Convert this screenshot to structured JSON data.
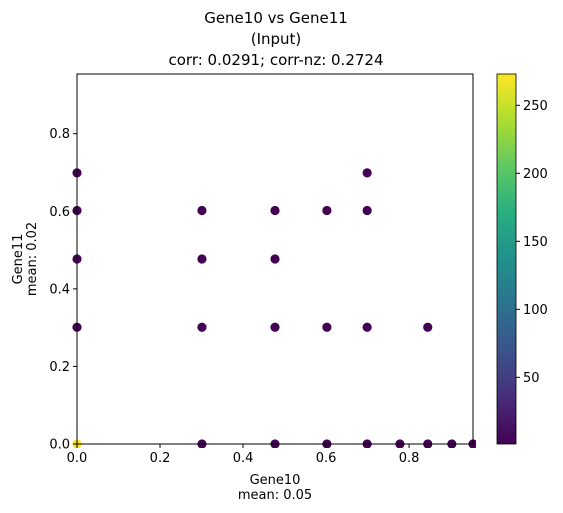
{
  "chart_data": {
    "type": "scatter",
    "title_lines": [
      "Gene10 vs Gene11",
      "(Input)",
      "corr: 0.0291; corr-nz: 0.2724"
    ],
    "xlabel_lines": [
      "Gene10",
      "mean: 0.05"
    ],
    "ylabel_lines": [
      "Gene11",
      "mean: 0.02"
    ],
    "xlim": [
      0,
      0.954
    ],
    "ylim": [
      0,
      0.954
    ],
    "xticks": [
      "0.0",
      "0.2",
      "0.4",
      "0.6",
      "0.8"
    ],
    "yticks": [
      "0.0",
      "0.2",
      "0.4",
      "0.6",
      "0.8"
    ],
    "colorbar": {
      "colormap": "viridis",
      "range": [
        1,
        273
      ],
      "ticks": [
        "50",
        "100",
        "150",
        "200",
        "250"
      ]
    },
    "colors": {
      "low": "#440154",
      "high": "#fde725"
    },
    "points": [
      {
        "x": 0,
        "y": 0,
        "c": 273
      },
      {
        "x": 0,
        "y": 0.301,
        "c": 3
      },
      {
        "x": 0,
        "y": 0.477,
        "c": 2
      },
      {
        "x": 0,
        "y": 0.602,
        "c": 1
      },
      {
        "x": 0,
        "y": 0.699,
        "c": 1
      },
      {
        "x": 0.301,
        "y": 0,
        "c": 3
      },
      {
        "x": 0.301,
        "y": 0.301,
        "c": 2
      },
      {
        "x": 0.301,
        "y": 0.477,
        "c": 1
      },
      {
        "x": 0.301,
        "y": 0.602,
        "c": 1
      },
      {
        "x": 0.477,
        "y": 0,
        "c": 2
      },
      {
        "x": 0.477,
        "y": 0.301,
        "c": 2
      },
      {
        "x": 0.477,
        "y": 0.477,
        "c": 1
      },
      {
        "x": 0.477,
        "y": 0.602,
        "c": 1
      },
      {
        "x": 0.602,
        "y": 0,
        "c": 2
      },
      {
        "x": 0.602,
        "y": 0.301,
        "c": 1
      },
      {
        "x": 0.602,
        "y": 0.602,
        "c": 1
      },
      {
        "x": 0.699,
        "y": 0,
        "c": 2
      },
      {
        "x": 0.699,
        "y": 0.301,
        "c": 1
      },
      {
        "x": 0.699,
        "y": 0.602,
        "c": 1
      },
      {
        "x": 0.699,
        "y": 0.699,
        "c": 1
      },
      {
        "x": 0.778,
        "y": 0,
        "c": 1
      },
      {
        "x": 0.845,
        "y": 0,
        "c": 1
      },
      {
        "x": 0.845,
        "y": 0.301,
        "c": 1
      },
      {
        "x": 0.903,
        "y": 0,
        "c": 1
      },
      {
        "x": 0.954,
        "y": 0,
        "c": 1
      }
    ]
  }
}
